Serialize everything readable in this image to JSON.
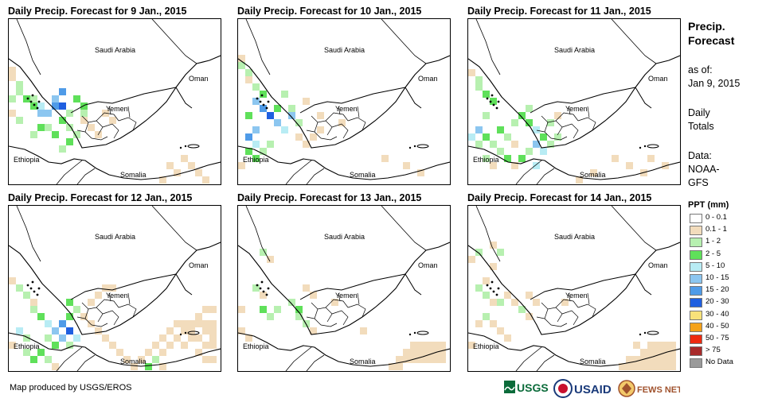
{
  "panels": [
    {
      "title": "Daily Precip. Forecast for 9 Jan., 2015"
    },
    {
      "title": "Daily Precip. Forecast for 10 Jan., 2015"
    },
    {
      "title": "Daily Precip. Forecast for 11 Jan., 2015"
    },
    {
      "title": "Daily Precip. Forecast for 12 Jan., 2015"
    },
    {
      "title": "Daily Precip. Forecast for 13 Jan., 2015"
    },
    {
      "title": "Daily Precip. Forecast for 14 Jan., 2015"
    }
  ],
  "countries": {
    "saudi": "Saudi Arabia",
    "oman": "Oman",
    "yemen": "Yemen",
    "ethiopia": "Ethiopia",
    "somalia": "Somalia"
  },
  "side": {
    "title_line1": "Precip.",
    "title_line2": "Forecast",
    "asof_line1": "as of:",
    "asof_line2": "Jan 9, 2015",
    "daily_line1": "Daily",
    "daily_line2": "Totals",
    "data_line1": "Data:",
    "data_line2": "NOAA-",
    "data_line3": "GFS"
  },
  "legend": {
    "title": "PPT (mm)",
    "items": [
      {
        "label": "0 - 0.1",
        "color": "#ffffff"
      },
      {
        "label": "0.1 - 1",
        "color": "#f2dcbc"
      },
      {
        "label": "1 - 2",
        "color": "#b7f0b0"
      },
      {
        "label": "2 - 5",
        "color": "#5fe05a"
      },
      {
        "label": "5 - 10",
        "color": "#b8ecf4"
      },
      {
        "label": "10 - 15",
        "color": "#8cc6f0"
      },
      {
        "label": "15 - 20",
        "color": "#4f9be8"
      },
      {
        "label": "20 - 30",
        "color": "#1f5fe0"
      },
      {
        "label": "30 - 40",
        "color": "#f8e27a"
      },
      {
        "label": "40 - 50",
        "color": "#f5a21a"
      },
      {
        "label": "50 - 75",
        "color": "#ee2a10"
      },
      {
        "label": "> 75",
        "color": "#a82a2a"
      },
      {
        "label": "No Data",
        "color": "#9a9a9a"
      }
    ]
  },
  "credit": "Map produced by USGS/EROS",
  "logos": {
    "usgs": "USGS",
    "usaid": "USAID",
    "fews": "FEWS NET"
  }
}
